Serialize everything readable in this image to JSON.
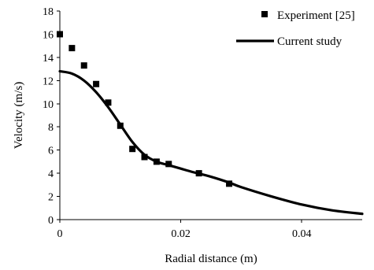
{
  "chart_data": {
    "type": "scatter",
    "title": "",
    "xlabel": "Radial distance (m)",
    "ylabel": "Velocity (m/s)",
    "xlim": [
      0,
      0.05
    ],
    "ylim": [
      0,
      18
    ],
    "xticks": [
      0,
      0.02,
      0.04
    ],
    "xtick_labels": [
      "0",
      "0.02",
      "0.04"
    ],
    "yticks": [
      0,
      2,
      4,
      6,
      8,
      10,
      12,
      14,
      16,
      18
    ],
    "ytick_labels": [
      "0",
      "2",
      "4",
      "6",
      "8",
      "10",
      "12",
      "14",
      "16",
      "18"
    ],
    "grid": false,
    "legend_position": "top-right",
    "series": [
      {
        "name": "Experiment [25]",
        "kind": "scatter",
        "marker": "square",
        "color": "#000000",
        "x": [
          0.0,
          0.002,
          0.004,
          0.006,
          0.008,
          0.01,
          0.012,
          0.014,
          0.016,
          0.018,
          0.023,
          0.028
        ],
        "y": [
          16.0,
          14.8,
          13.3,
          11.7,
          10.1,
          8.1,
          6.1,
          5.4,
          5.0,
          4.8,
          4.0,
          3.1
        ]
      },
      {
        "name": "Current study",
        "kind": "line",
        "color": "#000000",
        "x": [
          0.0,
          0.002,
          0.004,
          0.006,
          0.008,
          0.01,
          0.012,
          0.014,
          0.016,
          0.018,
          0.02,
          0.022,
          0.025,
          0.028,
          0.03,
          0.035,
          0.04,
          0.045,
          0.05
        ],
        "y": [
          12.8,
          12.6,
          12.0,
          11.0,
          9.7,
          8.2,
          6.7,
          5.6,
          5.0,
          4.7,
          4.4,
          4.1,
          3.7,
          3.2,
          2.8,
          2.0,
          1.3,
          0.8,
          0.5
        ]
      }
    ]
  }
}
